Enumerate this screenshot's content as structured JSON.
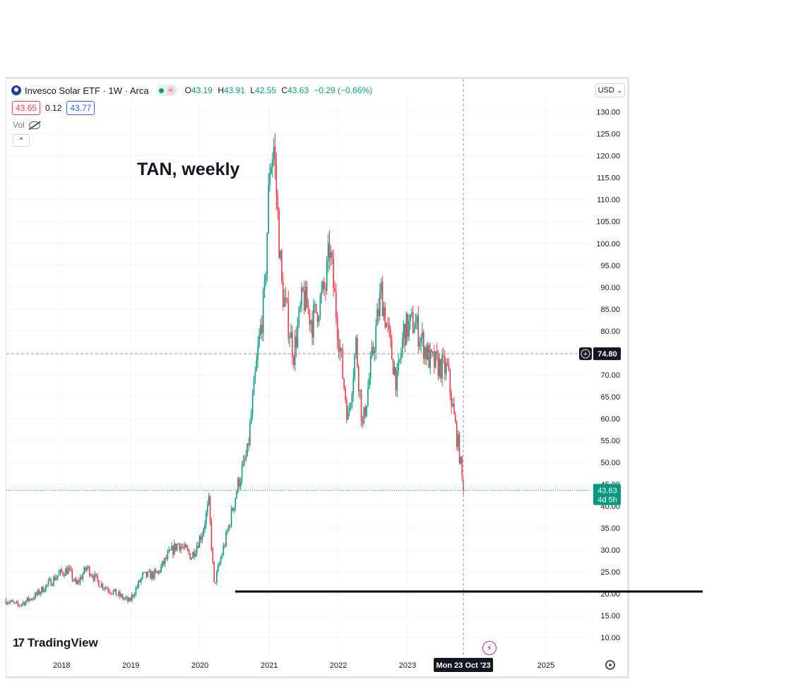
{
  "legend": {
    "title": "Invesco Solar ETF · 1W · Arca",
    "wave_symbol": "≈",
    "open_label": "O",
    "open": "43.19",
    "high_label": "H",
    "high": "43.91",
    "low_label": "L",
    "low": "42.55",
    "close_label": "C",
    "close": "43.63",
    "change": "−0.29 (−0.66%)"
  },
  "quote": {
    "bid": "43.65",
    "spread": "0.12",
    "ask": "43.77"
  },
  "volume_label": "Vol",
  "collapse_symbol": "⌃",
  "annotation": "TAN, weekly",
  "currency": "USD",
  "currency_caret": "⌄",
  "brand": {
    "mark": "17",
    "name": "TradingView"
  },
  "colors": {
    "up": "#089981",
    "down": "#f23645",
    "crosshair": "#9598a1",
    "label_dark": "#131722",
    "accent_purple": "#9c27b0"
  },
  "icons": {
    "lightning": "⚡",
    "crosshair_plus": "+"
  },
  "chart_data": {
    "type": "candlestick",
    "interval": "weekly",
    "y_axis": {
      "side": "right",
      "ticks": [
        10,
        15,
        20,
        25,
        30,
        35,
        40,
        45,
        50,
        55,
        60,
        65,
        70,
        75,
        80,
        85,
        90,
        95,
        100,
        105,
        110,
        115,
        120,
        125,
        130
      ],
      "range": [
        6,
        133
      ]
    },
    "x_axis": {
      "ticks": [
        "2018",
        "2019",
        "2020",
        "2021",
        "2022",
        "2023",
        "2025"
      ],
      "range": [
        "2017-03-15",
        "2025-08-20"
      ]
    },
    "crosshair": {
      "price": "74.80",
      "date": "Mon 23 Oct '23"
    },
    "last_price": {
      "price": "43.63",
      "countdown": "4d 5h"
    },
    "price_path": [
      [
        "2017-03-13",
        18.5
      ],
      [
        "2017-05-15",
        17.3
      ],
      [
        "2017-08-14",
        19.5
      ],
      [
        "2017-10-16",
        22.0
      ],
      [
        "2017-12-18",
        24.5
      ],
      [
        "2018-02-05",
        25.5
      ],
      [
        "2018-03-19",
        22.0
      ],
      [
        "2018-05-14",
        26.0
      ],
      [
        "2018-07-16",
        22.5
      ],
      [
        "2018-10-15",
        20.0
      ],
      [
        "2018-12-24",
        18.2
      ],
      [
        "2019-03-04",
        24.0
      ],
      [
        "2019-05-20",
        24.5
      ],
      [
        "2019-07-22",
        29.0
      ],
      [
        "2019-09-09",
        31.5
      ],
      [
        "2019-11-18",
        28.5
      ],
      [
        "2020-01-13",
        34.0
      ],
      [
        "2020-02-17",
        40.5
      ],
      [
        "2020-03-16",
        22.0
      ],
      [
        "2020-05-25",
        34.0
      ],
      [
        "2020-07-20",
        45.0
      ],
      [
        "2020-09-07",
        52.0
      ],
      [
        "2020-11-09",
        78.0
      ],
      [
        "2020-12-07",
        88.0
      ],
      [
        "2021-01-04",
        118.0
      ],
      [
        "2021-01-25",
        122.0
      ],
      [
        "2021-03-08",
        90.0
      ],
      [
        "2021-05-10",
        75.0
      ],
      [
        "2021-06-28",
        88.0
      ],
      [
        "2021-08-16",
        82.0
      ],
      [
        "2021-10-25",
        90.0
      ],
      [
        "2021-11-15",
        99.0
      ],
      [
        "2022-01-24",
        70.0
      ],
      [
        "2022-02-21",
        60.0
      ],
      [
        "2022-04-04",
        77.0
      ],
      [
        "2022-05-09",
        58.0
      ],
      [
        "2022-08-15",
        89.0
      ],
      [
        "2022-10-03",
        76.0
      ],
      [
        "2022-11-07",
        68.0
      ],
      [
        "2022-12-12",
        80.0
      ],
      [
        "2023-02-06",
        82.0
      ],
      [
        "2023-05-01",
        73.0
      ],
      [
        "2023-06-19",
        72.0
      ],
      [
        "2023-07-31",
        71.0
      ],
      [
        "2023-09-04",
        60.0
      ],
      [
        "2023-10-02",
        52.0
      ],
      [
        "2023-10-23",
        43.63
      ]
    ]
  }
}
